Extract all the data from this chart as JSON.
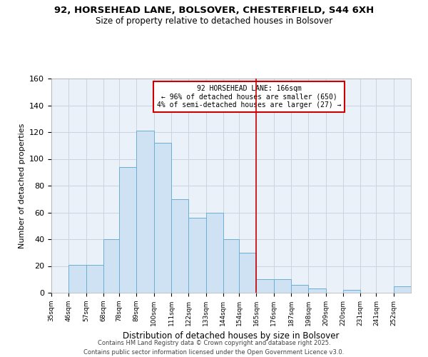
{
  "title": "92, HORSEHEAD LANE, BOLSOVER, CHESTERFIELD, S44 6XH",
  "subtitle": "Size of property relative to detached houses in Bolsover",
  "xlabel": "Distribution of detached houses by size in Bolsover",
  "ylabel": "Number of detached properties",
  "bin_labels": [
    "35sqm",
    "46sqm",
    "57sqm",
    "68sqm",
    "78sqm",
    "89sqm",
    "100sqm",
    "111sqm",
    "122sqm",
    "133sqm",
    "144sqm",
    "154sqm",
    "165sqm",
    "176sqm",
    "187sqm",
    "198sqm",
    "209sqm",
    "220sqm",
    "231sqm",
    "241sqm",
    "252sqm"
  ],
  "bin_edges": [
    35,
    46,
    57,
    68,
    78,
    89,
    100,
    111,
    122,
    133,
    144,
    154,
    165,
    176,
    187,
    198,
    209,
    220,
    231,
    241,
    252
  ],
  "bar_heights": [
    0,
    21,
    21,
    40,
    94,
    121,
    112,
    70,
    56,
    60,
    40,
    30,
    10,
    10,
    6,
    3,
    0,
    2,
    0,
    0,
    5
  ],
  "bar_color": "#cfe2f3",
  "bar_edge_color": "#6baed6",
  "plot_bg_color": "#eaf1f8",
  "vline_x": 165,
  "vline_color": "#cc0000",
  "annotation_title": "92 HORSEHEAD LANE: 166sqm",
  "annotation_line1": "← 96% of detached houses are smaller (650)",
  "annotation_line2": "4% of semi-detached houses are larger (27) →",
  "annotation_box_color": "#ffffff",
  "annotation_border_color": "#cc0000",
  "ylim": [
    0,
    160
  ],
  "yticks": [
    0,
    20,
    40,
    60,
    80,
    100,
    120,
    140,
    160
  ],
  "footer_line1": "Contains HM Land Registry data © Crown copyright and database right 2025.",
  "footer_line2": "Contains public sector information licensed under the Open Government Licence v3.0.",
  "background_color": "#ffffff",
  "grid_color": "#c8d4e0"
}
